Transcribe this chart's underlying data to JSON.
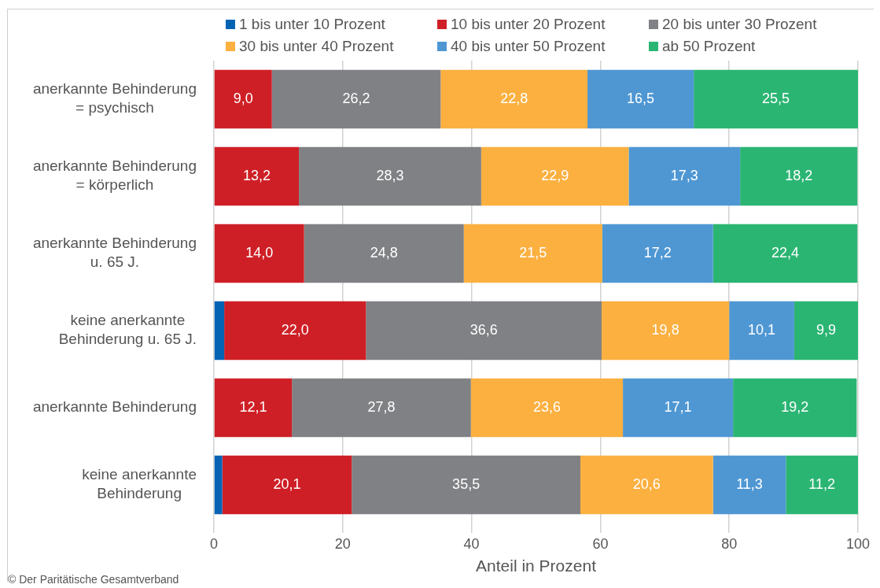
{
  "chart_data": {
    "type": "bar",
    "orientation": "horizontal",
    "stacked": true,
    "categories": [
      "anerkannte Behinderung = psychisch",
      "anerkannte Behinderung = körperlich",
      "anerkannte Behinderung u. 65 J.",
      "keine anerkannte Behinderung u. 65 J.",
      "anerkannte Behinderung",
      "keine anerkannte Behinderung"
    ],
    "xlabel": "Anteil in Prozent",
    "xlim": [
      0,
      100
    ],
    "xticks": [
      0,
      20,
      40,
      60,
      80,
      100
    ],
    "grid": "x",
    "legend": "top",
    "annotations": [
      "© Der Paritätische Gesamtverband"
    ],
    "series": [
      {
        "name": "1 bis unter 10 Prozent",
        "color": "#0563b4",
        "values": [
          null,
          null,
          null,
          1.6,
          null,
          1.3
        ],
        "value_labels": [
          null,
          null,
          null,
          null,
          null,
          null
        ]
      },
      {
        "name": "10 bis unter 20 Prozent",
        "color": "#cf1f26",
        "values": [
          9.0,
          13.2,
          14.0,
          22.0,
          12.1,
          20.1
        ],
        "value_labels": [
          "9,0",
          "13,2",
          "14,0",
          "22,0",
          "12,1",
          "20,1"
        ]
      },
      {
        "name": "20 bis unter 30 Prozent",
        "color": "#808184",
        "values": [
          26.2,
          28.3,
          24.8,
          36.6,
          27.8,
          35.5
        ],
        "value_labels": [
          "26,2",
          "28,3",
          "24,8",
          "36,6",
          "27,8",
          "35,5"
        ]
      },
      {
        "name": "30 bis unter 40 Prozent",
        "color": "#fbb040",
        "values": [
          22.8,
          22.9,
          21.5,
          19.8,
          23.6,
          20.6
        ],
        "value_labels": [
          "22,8",
          "22,9",
          "21,5",
          "19,8",
          "23,6",
          "20,6"
        ]
      },
      {
        "name": "40 bis unter 50 Prozent",
        "color": "#4f97d3",
        "values": [
          16.5,
          17.3,
          17.2,
          10.1,
          17.1,
          11.3
        ],
        "value_labels": [
          "16,5",
          "17,3",
          "17,2",
          "10,1",
          "17,1",
          "11,3"
        ]
      },
      {
        "name": "ab 50 Prozent",
        "color": "#2bb573",
        "values": [
          25.5,
          18.2,
          22.4,
          9.9,
          19.2,
          11.2
        ],
        "value_labels": [
          "25,5",
          "18,2",
          "22,4",
          "9,9",
          "19,2",
          "11,2"
        ]
      }
    ]
  }
}
